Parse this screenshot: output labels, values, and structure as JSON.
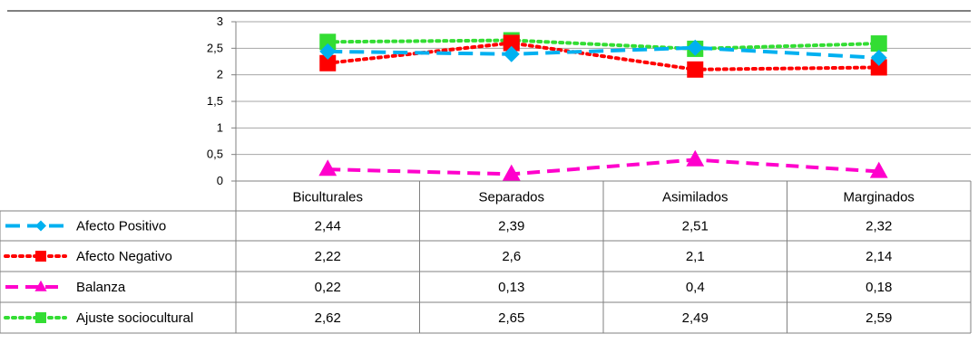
{
  "chart_data": {
    "type": "line",
    "categories": [
      "Biculturales",
      "Separados",
      "Asimilados",
      "Marginados"
    ],
    "ylim": [
      0,
      3
    ],
    "yticks": [
      "0",
      "0,5",
      "1",
      "1,5",
      "2",
      "2,5",
      "3"
    ],
    "grid": true,
    "legend": "data-table-left",
    "series": [
      {
        "name": "Afecto Positivo",
        "values": [
          2.44,
          2.39,
          2.51,
          2.32
        ],
        "labels": [
          "2,44",
          "2,39",
          "2,51",
          "2,32"
        ],
        "color": "#00B0F0",
        "marker": "diamond",
        "line": "long-dash"
      },
      {
        "name": "Afecto Negativo",
        "values": [
          2.22,
          2.6,
          2.1,
          2.14
        ],
        "labels": [
          "2,22",
          "2,6",
          "2,1",
          "2,14"
        ],
        "color": "#FF0000",
        "marker": "square",
        "line": "dotted"
      },
      {
        "name": "Balanza",
        "values": [
          0.22,
          0.13,
          0.4,
          0.18
        ],
        "labels": [
          "0,22",
          "0,13",
          "0,4",
          "0,18"
        ],
        "color": "#FF00CC",
        "marker": "triangle",
        "line": "dash"
      },
      {
        "name": "Ajuste sociocultural",
        "values": [
          2.62,
          2.65,
          2.49,
          2.59
        ],
        "labels": [
          "2,62",
          "2,65",
          "2,49",
          "2,59"
        ],
        "color": "#33DD33",
        "marker": "square",
        "line": "dotted"
      }
    ]
  }
}
